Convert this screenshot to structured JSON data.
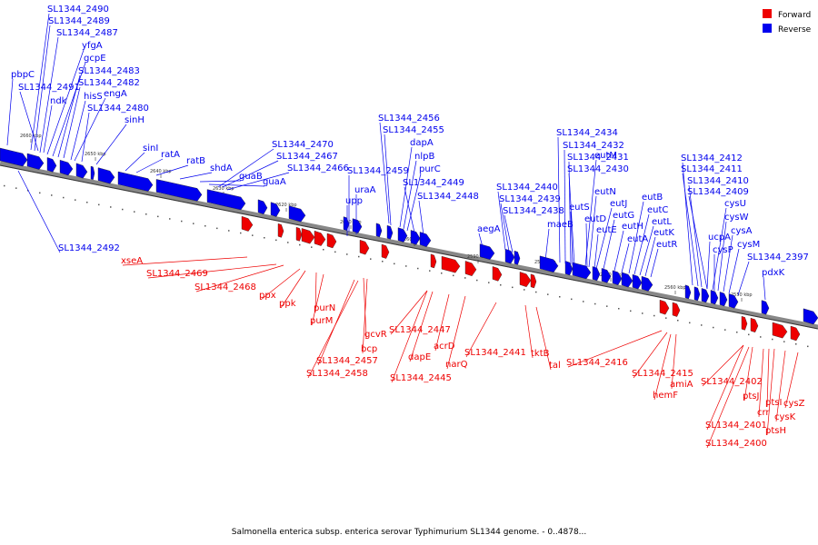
{
  "caption": "Salmonella enterica subsp. enterica serovar Typhimurium SL1344 genome. - 0..4878...",
  "colors": {
    "forward": "#ee0000",
    "reverse": "#0000ee",
    "backbone": "#888888"
  },
  "legend": [
    {
      "label": "Forward",
      "color": "#ee0000"
    },
    {
      "label": "Reverse",
      "color": "#0000ee"
    }
  ],
  "ticks": [
    "2660 kbp",
    "2650 kbp",
    "2640 kbp",
    "2630 kbp",
    "2620 kbp",
    "2610 kbp",
    "2600 kbp",
    "2590 kbp",
    "2580 kbp",
    "2570 kbp",
    "2560 kbp",
    "2550 kbp"
  ],
  "reverse_labels": [
    "SL1344_2490",
    "SL1344_2489",
    "SL1344_2487",
    "yfgA",
    "gcpE",
    "pbpC",
    "SL1344_2483",
    "SL1344_2491",
    "SL1344_2482",
    "ndk",
    "hisS",
    "engA",
    "SL1344_2480",
    "sinH",
    "sinI",
    "ratA",
    "ratB",
    "shdA",
    "guaB",
    "guaA",
    "SL1344_2470",
    "SL1344_2467",
    "SL1344_2466",
    "SL1344_2456",
    "SL1344_2455",
    "dapA",
    "nlpB",
    "SL1344_2459",
    "purC",
    "uraA",
    "SL1344_2449",
    "upp",
    "SL1344_2448",
    "SL1344_2440",
    "SL1344_2439",
    "SL1344_2438",
    "aegA",
    "maeB",
    "SL1344_2434",
    "SL1344_2432",
    "SL1344_2431",
    "SL1344_2430",
    "eutM",
    "eutN",
    "eutS",
    "eutJ",
    "eutD",
    "eutG",
    "eutE",
    "eutH",
    "eutA",
    "eutB",
    "eutC",
    "eutL",
    "eutK",
    "eutR",
    "SL1344_2412",
    "SL1344_2411",
    "SL1344_2410",
    "SL1344_2409",
    "cysU",
    "cysW",
    "ucpA",
    "cysA",
    "cysP",
    "cysM",
    "SL1344_2397",
    "pdxK",
    "SL1344_2492"
  ],
  "forward_labels": [
    "xseA",
    "SL1344_2469",
    "SL1344_2468",
    "ppx",
    "ppk",
    "purN",
    "purM",
    "gcvR",
    "bcp",
    "SL1344_2457",
    "SL1344_2458",
    "SL1344_2447",
    "dapE",
    "acrD",
    "SL1344_2445",
    "narQ",
    "SL1344_2441",
    "tktB",
    "tal",
    "SL1344_2416",
    "SL1344_2415",
    "amiA",
    "hemF",
    "SL1344_2402",
    "ptsJ",
    "crr",
    "ptsI",
    "cysZ",
    "cysK",
    "SL1344_2401",
    "ptsH",
    "SL1344_2400"
  ]
}
